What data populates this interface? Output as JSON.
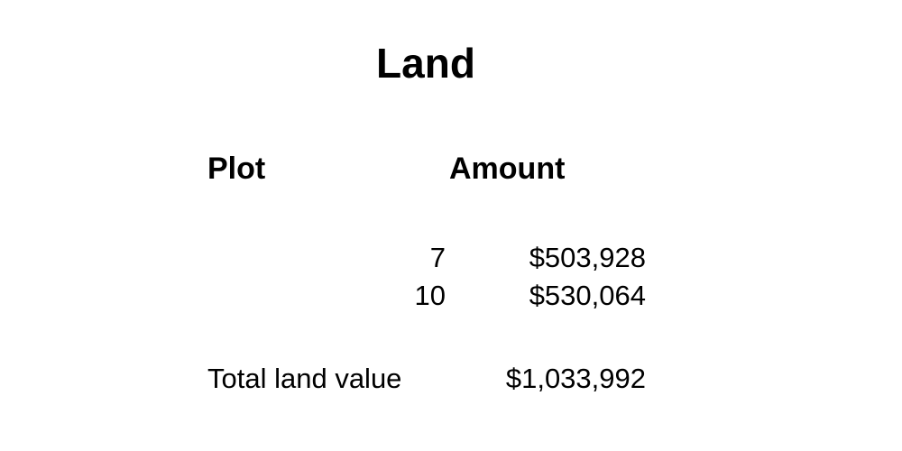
{
  "title": "Land",
  "table": {
    "headers": {
      "plot": "Plot",
      "amount": "Amount"
    },
    "rows": [
      {
        "plot": "7",
        "amount": "$503,928"
      },
      {
        "plot": "10",
        "amount": "$530,064"
      }
    ],
    "total": {
      "label": "Total land value",
      "value": "$1,033,992"
    }
  }
}
